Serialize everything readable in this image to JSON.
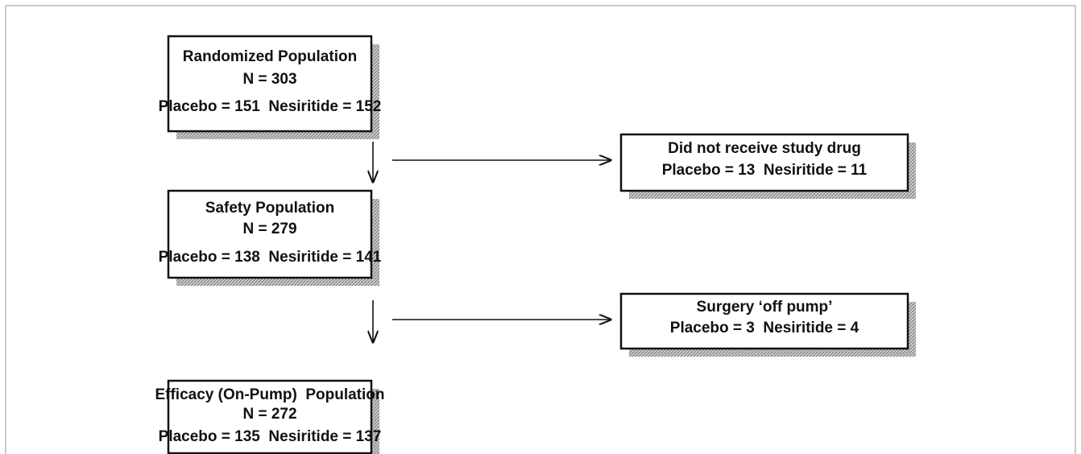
{
  "nodes": [
    {
      "lines": [
        "Randomized Population",
        "N = 303",
        "Placebo = 151  Nesiritide = 152"
      ]
    },
    {
      "lines": [
        "Safety Population",
        "N = 279",
        "Placebo = 138  Nesiritide = 141"
      ]
    },
    {
      "lines": [
        "Efficacy (On-Pump)  Population",
        "N = 272",
        "Placebo = 135  Nesiritide = 137"
      ]
    },
    {
      "lines": [
        "Did not receive study drug",
        "Placebo = 13  Nesiritide = 11"
      ]
    },
    {
      "lines": [
        "Surgery ‘off pump’",
        "Placebo = 3  Nesiritide = 4"
      ]
    }
  ]
}
